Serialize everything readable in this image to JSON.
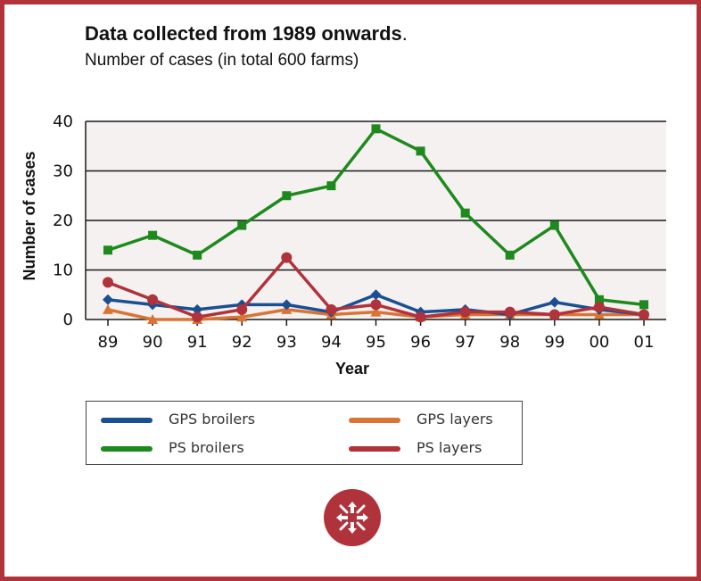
{
  "page": {
    "title_bold": "Data collected from 1989 onwards",
    "title_tail": ".",
    "subtitle": "Number of cases (in total 600 farms)"
  },
  "colors": {
    "frame": "#b0323a",
    "plot_bg": "#f5f1f0",
    "gps_broilers": "#1b4f93",
    "gps_layers": "#d97435",
    "ps_broilers": "#1e8a1e",
    "ps_layers": "#b0323a"
  },
  "logo": {
    "icon": "compass-arrows-icon"
  },
  "chart_data": {
    "type": "line",
    "title": "Data collected from 1989 onwards.",
    "subtitle": "Number of cases (in total 600 farms)",
    "xlabel": "Year",
    "ylabel": "Number of cases",
    "categories": [
      "89",
      "90",
      "91",
      "92",
      "93",
      "94",
      "95",
      "96",
      "97",
      "98",
      "99",
      "00",
      "01"
    ],
    "ylim": [
      0,
      40
    ],
    "yticks": [
      "0",
      "10",
      "20",
      "30",
      "40"
    ],
    "grid": true,
    "legend_position": "bottom",
    "series": [
      {
        "name": "GPS broilers",
        "marker": "diamond",
        "color": "#1b4f93",
        "values": [
          4,
          3,
          2,
          3,
          3,
          1.5,
          5,
          1.5,
          2,
          1,
          3.5,
          2,
          1
        ]
      },
      {
        "name": "GPS layers",
        "marker": "triangle",
        "color": "#d97435",
        "values": [
          2,
          0,
          0,
          0.5,
          2,
          1,
          1.5,
          0.5,
          1,
          1,
          1,
          1,
          1
        ]
      },
      {
        "name": "PS broilers",
        "marker": "square",
        "color": "#1e8a1e",
        "values": [
          14,
          17,
          13,
          19,
          25,
          27,
          38.5,
          34,
          21.5,
          13,
          19,
          4,
          3
        ]
      },
      {
        "name": "PS layers",
        "marker": "circle",
        "color": "#b0323a",
        "values": [
          7.5,
          4,
          0.5,
          2,
          12.5,
          2,
          3,
          0.5,
          1.5,
          1.5,
          1,
          2.5,
          1
        ]
      }
    ]
  },
  "legend": {
    "items": [
      {
        "label": "GPS broilers",
        "color": "#1b4f93"
      },
      {
        "label": "GPS layers",
        "color": "#d97435"
      },
      {
        "label": "PS broilers",
        "color": "#1e8a1e"
      },
      {
        "label": "PS layers",
        "color": "#b0323a"
      }
    ]
  }
}
